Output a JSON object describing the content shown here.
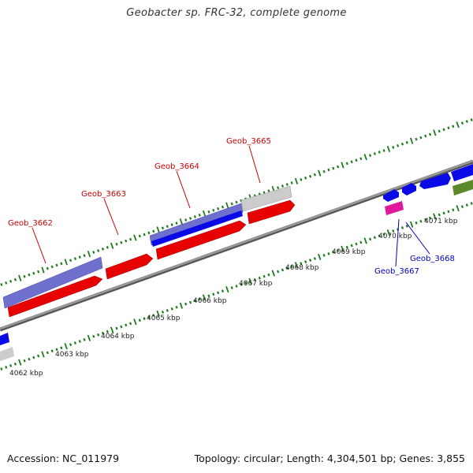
{
  "title": "Geobacter sp. FRC-32, complete genome",
  "footer": {
    "accession": "Accession: NC_011979",
    "topology": "Topology: circular; Length: 4,304,501 bp; Genes: 3,855"
  },
  "colors": {
    "backbone": "#808080",
    "tick": "#1f7a1f",
    "cds_red": "#e60000",
    "cds_blue": "#0a0ae6",
    "cds_purple": "#6f6fce",
    "cds_gray": "#c8c8c8",
    "cds_magenta": "#e0189a",
    "cds_green": "#5a8a2a",
    "label_red": "#cc0000",
    "label_blue": "#0000bb"
  },
  "ticks": [
    {
      "label": "4062 kbp"
    },
    {
      "label": "4063 kbp"
    },
    {
      "label": "4064 kbp"
    },
    {
      "label": "4065 kbp"
    },
    {
      "label": "4066 kbp"
    },
    {
      "label": "4067 kbp"
    },
    {
      "label": "4068 kbp"
    },
    {
      "label": "4069 kbp"
    },
    {
      "label": "4070 kbp"
    },
    {
      "label": "4071 kbp"
    }
  ],
  "gene_labels": [
    {
      "name": "Geob_3662",
      "color": "red"
    },
    {
      "name": "Geob_3663",
      "color": "red"
    },
    {
      "name": "Geob_3664",
      "color": "red"
    },
    {
      "name": "Geob_3665",
      "color": "red"
    },
    {
      "name": "Geob_3667",
      "color": "blue"
    },
    {
      "name": "Geob_3668",
      "color": "blue"
    }
  ]
}
